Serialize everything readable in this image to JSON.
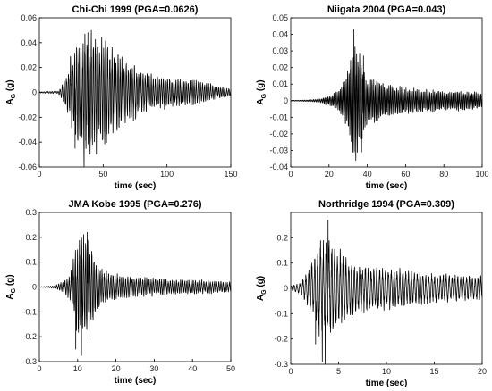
{
  "chart_data": [
    {
      "type": "line",
      "title": "Chi-Chi 1999 (PGA=0.0626)",
      "xlabel": "time (sec)",
      "ylabel": "A",
      "ylabel_sub": "G",
      "ylabel_unit": " (g)",
      "xlim": [
        0,
        150
      ],
      "ylim": [
        -0.06,
        0.06
      ],
      "xticks": [
        0,
        50,
        100,
        150
      ],
      "yticks": [
        -0.06,
        -0.04,
        -0.02,
        0,
        0.02,
        0.04,
        0.06
      ],
      "xtick_labels": [
        "0",
        "50",
        "100",
        "150"
      ],
      "ytick_labels": [
        "-0.06",
        "-0.04",
        "-0.02",
        "0",
        "0.02",
        "0.04",
        "0.06"
      ],
      "grid": false,
      "envelope": [
        [
          0,
          0.0005
        ],
        [
          15,
          0.001
        ],
        [
          20,
          0.01
        ],
        [
          25,
          0.03
        ],
        [
          30,
          0.045
        ],
        [
          40,
          0.05
        ],
        [
          50,
          0.045
        ],
        [
          60,
          0.032
        ],
        [
          70,
          0.024
        ],
        [
          80,
          0.018
        ],
        [
          90,
          0.014
        ],
        [
          100,
          0.012
        ],
        [
          110,
          0.011
        ],
        [
          120,
          0.01
        ],
        [
          130,
          0.008
        ],
        [
          140,
          0.005
        ],
        [
          150,
          0.003
        ]
      ],
      "period": 1.6,
      "peaks": [
        [
          35,
          -0.062
        ],
        [
          38,
          0.048
        ],
        [
          46,
          0.046
        ],
        [
          28,
          -0.045
        ]
      ]
    },
    {
      "type": "line",
      "title": "Niigata 2004 (PGA=0.043)",
      "xlabel": "time (sec)",
      "ylabel": "A",
      "ylabel_sub": "G",
      "ylabel_unit": " (g)",
      "xlim": [
        0,
        100
      ],
      "ylim": [
        -0.04,
        0.05
      ],
      "xticks": [
        0,
        20,
        40,
        60,
        80,
        100
      ],
      "yticks": [
        -0.04,
        -0.03,
        -0.02,
        -0.01,
        0,
        0.01,
        0.02,
        0.03,
        0.04,
        0.05
      ],
      "xtick_labels": [
        "0",
        "20",
        "40",
        "60",
        "80",
        "100"
      ],
      "ytick_labels": [
        "-0.04",
        "-0.03",
        "-0.02",
        "-0.01",
        "0",
        "0.01",
        "0.02",
        "0.03",
        "0.04",
        "0.05"
      ],
      "grid": false,
      "envelope": [
        [
          0,
          0.0002
        ],
        [
          10,
          0.0005
        ],
        [
          15,
          0.001
        ],
        [
          20,
          0.003
        ],
        [
          25,
          0.006
        ],
        [
          30,
          0.02
        ],
        [
          33,
          0.035
        ],
        [
          36,
          0.03
        ],
        [
          40,
          0.015
        ],
        [
          50,
          0.01
        ],
        [
          60,
          0.008
        ],
        [
          70,
          0.007
        ],
        [
          80,
          0.006
        ],
        [
          90,
          0.006
        ],
        [
          100,
          0.005
        ]
      ],
      "period": 0.8,
      "peaks": [
        [
          33,
          0.043
        ],
        [
          34,
          -0.036
        ],
        [
          37,
          -0.031
        ],
        [
          38,
          0.027
        ]
      ]
    },
    {
      "type": "line",
      "title": "JMA Kobe 1995 (PGA=0.276)",
      "xlabel": "time (sec)",
      "ylabel": "A",
      "ylabel_sub": "G",
      "ylabel_unit": " (g)",
      "xlim": [
        0,
        50
      ],
      "ylim": [
        -0.3,
        0.3
      ],
      "xticks": [
        0,
        10,
        20,
        30,
        40,
        50
      ],
      "yticks": [
        -0.3,
        -0.2,
        -0.1,
        0,
        0.1,
        0.2,
        0.3
      ],
      "xtick_labels": [
        "0",
        "10",
        "20",
        "30",
        "40",
        "50"
      ],
      "ytick_labels": [
        "-0.3",
        "-0.2",
        "-0.1",
        "0",
        "0.1",
        "0.2",
        "0.3"
      ],
      "grid": false,
      "envelope": [
        [
          0,
          0.001
        ],
        [
          4,
          0.005
        ],
        [
          6,
          0.02
        ],
        [
          8,
          0.05
        ],
        [
          9,
          0.12
        ],
        [
          10,
          0.2
        ],
        [
          12,
          0.22
        ],
        [
          14,
          0.15
        ],
        [
          16,
          0.08
        ],
        [
          18,
          0.06
        ],
        [
          20,
          0.05
        ],
        [
          25,
          0.04
        ],
        [
          30,
          0.035
        ],
        [
          35,
          0.03
        ],
        [
          40,
          0.03
        ],
        [
          45,
          0.025
        ],
        [
          50,
          0.02
        ]
      ],
      "period": 0.55,
      "peaks": [
        [
          11,
          -0.276
        ],
        [
          9.5,
          -0.25
        ],
        [
          12.5,
          0.22
        ],
        [
          13,
          -0.2
        ]
      ]
    },
    {
      "type": "line",
      "title": "Northridge 1994 (PGA=0.309)",
      "xlabel": "time (sec)",
      "ylabel": "A",
      "ylabel_sub": "G",
      "ylabel_unit": " (g)",
      "xlim": [
        0,
        20
      ],
      "ylim": [
        -0.3,
        0.3
      ],
      "xticks": [
        0,
        5,
        10,
        15,
        20
      ],
      "yticks": [
        -0.3,
        -0.2,
        -0.1,
        0,
        0.1,
        0.2
      ],
      "xtick_labels": [
        "0",
        "5",
        "10",
        "15",
        "20"
      ],
      "ytick_labels": [
        "-0.3",
        "-0.2",
        "-0.1",
        "0",
        "0.1",
        "0.2"
      ],
      "grid": false,
      "envelope": [
        [
          0,
          0.01
        ],
        [
          1,
          0.02
        ],
        [
          2,
          0.08
        ],
        [
          3,
          0.18
        ],
        [
          4,
          0.2
        ],
        [
          5,
          0.15
        ],
        [
          6,
          0.12
        ],
        [
          7,
          0.1
        ],
        [
          8,
          0.09
        ],
        [
          10,
          0.08
        ],
        [
          12,
          0.07
        ],
        [
          14,
          0.06
        ],
        [
          16,
          0.055
        ],
        [
          18,
          0.05
        ],
        [
          20,
          0.05
        ]
      ],
      "period": 0.3,
      "peaks": [
        [
          3.6,
          -0.309
        ],
        [
          3.3,
          -0.29
        ],
        [
          3.9,
          0.27
        ],
        [
          2.6,
          -0.22
        ]
      ]
    }
  ]
}
